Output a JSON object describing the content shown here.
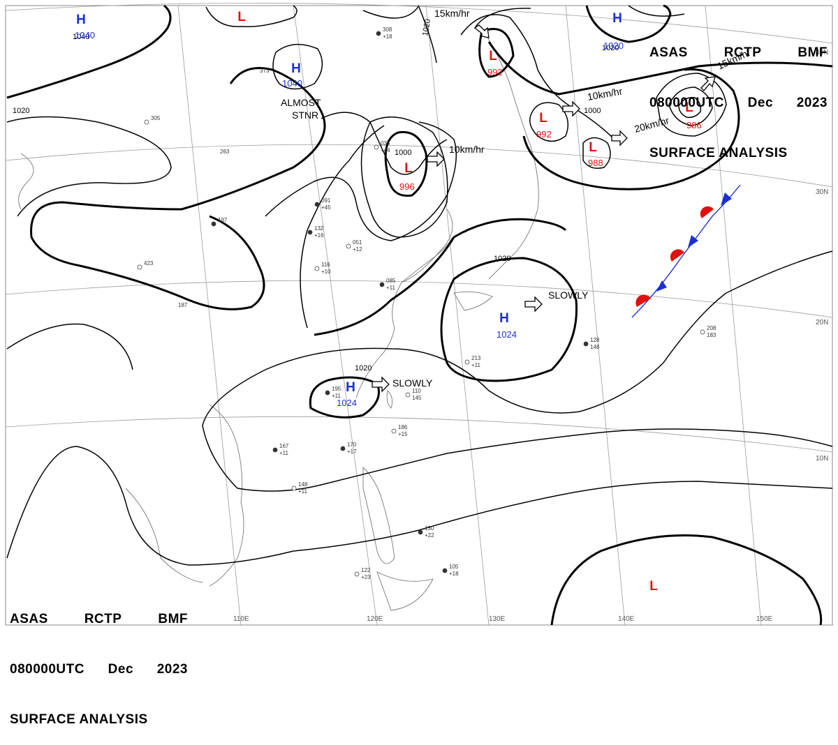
{
  "header_top": {
    "line1": [
      "ASAS",
      "RCTP",
      "BMF"
    ],
    "line2": [
      "080000UTC",
      "Dec",
      "2023"
    ],
    "line3": "SURFACE ANALYSIS"
  },
  "header_bottom": {
    "line1": [
      "ASAS",
      "RCTP",
      "BMF"
    ],
    "line2": [
      "080000UTC",
      "Dec",
      "2023"
    ],
    "line3": "SURFACE ANALYSIS"
  },
  "colors": {
    "high": "#1a2fd6",
    "low": "#e01010",
    "isobar": "#000000",
    "coast": "#777777",
    "grid": "#9a9a9a",
    "warm_front": "#e01010",
    "cold_front": "#1a2fd6"
  },
  "pressure_centers": [
    {
      "type": "H",
      "value": "1040",
      "letter": "H",
      "color": "high"
    },
    {
      "type": "H",
      "value": "1040",
      "letter": "H",
      "color": "high"
    },
    {
      "type": "H",
      "value": "1020",
      "letter": "H",
      "color": "high"
    },
    {
      "type": "H",
      "value": "1024",
      "letter": "H",
      "color": "high"
    },
    {
      "type": "H",
      "value": "1024",
      "letter": "H",
      "color": "high"
    },
    {
      "type": "L",
      "value": "",
      "letter": "L",
      "color": "low"
    },
    {
      "type": "L",
      "value": "992",
      "letter": "L",
      "color": "low"
    },
    {
      "type": "L",
      "value": "996",
      "letter": "L",
      "color": "low"
    },
    {
      "type": "L",
      "value": "992",
      "letter": "L",
      "color": "low"
    },
    {
      "type": "L",
      "value": "988",
      "letter": "L",
      "color": "low"
    },
    {
      "type": "L",
      "value": "986",
      "letter": "L",
      "color": "low"
    },
    {
      "type": "L",
      "value": "",
      "letter": "L",
      "color": "low"
    }
  ],
  "isobar_labels": [
    "1040",
    "1020",
    "1020",
    "1000",
    "1000",
    "1020",
    "1020",
    "1020"
  ],
  "annotations": [
    "ALMOST",
    "STNR",
    "10km/hr",
    "15km/hr",
    "10km/hr",
    "20km/hr",
    "15km/hr",
    "SLOWLY",
    "SLOWLY"
  ],
  "lat_labels": [
    "40N",
    "30N",
    "20N",
    "10N"
  ],
  "lon_labels": [
    "110E",
    "120E",
    "130E",
    "140E",
    "150E"
  ],
  "station_samples": [
    "308",
    "+18",
    "035",
    "+44",
    "132",
    "+16",
    "116",
    "+10",
    "091",
    "+45",
    "051",
    "+12",
    "085",
    "+11",
    "213",
    "+11",
    "195",
    "+11",
    "186",
    "+15",
    "170",
    "+17",
    "148",
    "+11",
    "167",
    "+11",
    "110",
    "145",
    "128",
    "148",
    "208",
    "183",
    "130",
    "+22",
    "122",
    "+23",
    "105",
    "+18",
    "423",
    "187",
    "197",
    "373",
    "305",
    "263"
  ]
}
